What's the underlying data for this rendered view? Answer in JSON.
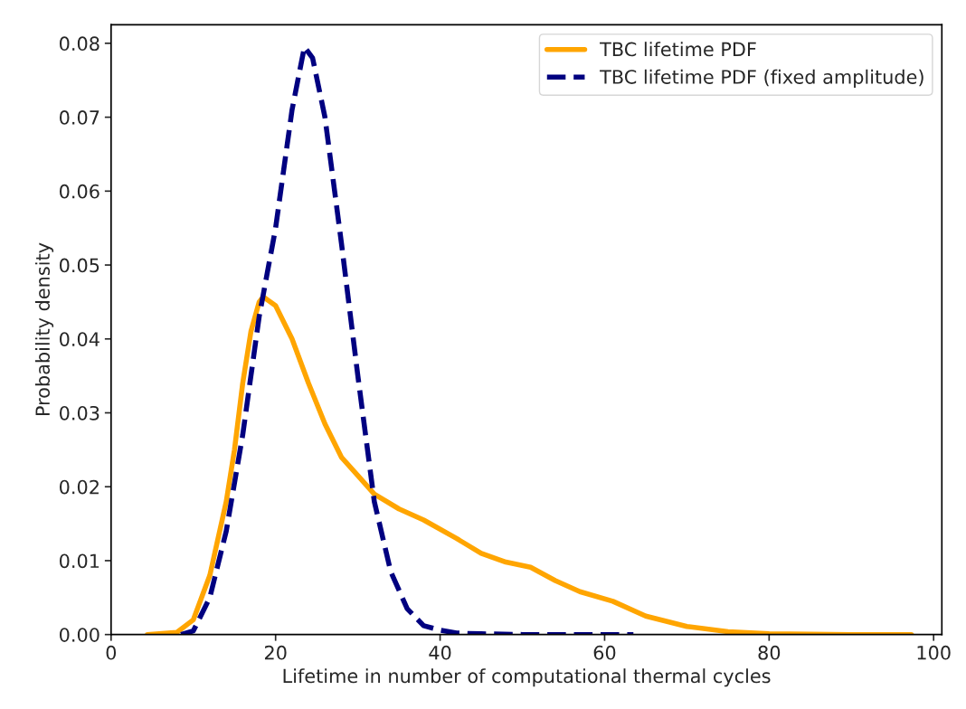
{
  "chart_data": {
    "type": "line",
    "xlabel": "Lifetime in number of computational thermal cycles",
    "ylabel": "Probability density",
    "xlim": [
      0,
      101
    ],
    "xticks": [
      0,
      20,
      40,
      60,
      80,
      100
    ],
    "ylim": [
      0,
      0.0825
    ],
    "yticks": [
      {
        "value": 0,
        "label": "0.00"
      },
      {
        "value": 0.01,
        "label": "0.01"
      },
      {
        "value": 0.02,
        "label": "0.02"
      },
      {
        "value": 0.03,
        "label": "0.03"
      },
      {
        "value": 0.04,
        "label": "0.04"
      },
      {
        "value": 0.05,
        "label": "0.05"
      },
      {
        "value": 0.06,
        "label": "0.06"
      },
      {
        "value": 0.07,
        "label": "0.07"
      },
      {
        "value": 0.08,
        "label": "0.08"
      }
    ],
    "legend": "top right",
    "grid": false,
    "series": [
      {
        "name": "TBC lifetime PDF",
        "color": "#ffa500",
        "line_style": "solid",
        "x": [
          4.4,
          8,
          10,
          12,
          14,
          15,
          16,
          17,
          18,
          18.5,
          20,
          22,
          24,
          26,
          28,
          30,
          32,
          35,
          38,
          42,
          45,
          48,
          51,
          54,
          57,
          61,
          65,
          70,
          75,
          80,
          90,
          97.3
        ],
        "values": [
          0,
          0.0003,
          0.002,
          0.008,
          0.018,
          0.025,
          0.034,
          0.041,
          0.045,
          0.0457,
          0.0445,
          0.04,
          0.034,
          0.0285,
          0.024,
          0.0215,
          0.019,
          0.017,
          0.0155,
          0.013,
          0.011,
          0.0098,
          0.0091,
          0.0073,
          0.0058,
          0.0045,
          0.0025,
          0.0011,
          0.0004,
          0.0001,
          0,
          0
        ]
      },
      {
        "name": "TBC lifetime PDF (fixed amplitude)",
        "color": "#000080",
        "line_style": "dashed",
        "x": [
          8.5,
          10,
          12,
          14,
          16,
          18,
          18.5,
          20,
          22,
          23.5,
          24.5,
          26,
          28,
          30,
          32,
          34,
          36,
          38,
          40,
          42,
          45,
          50,
          63.5
        ],
        "values": [
          0,
          0.0005,
          0.005,
          0.014,
          0.027,
          0.043,
          0.046,
          0.055,
          0.071,
          0.0795,
          0.078,
          0.07,
          0.053,
          0.035,
          0.018,
          0.0085,
          0.0035,
          0.0012,
          0.0006,
          0.0002,
          0.0001,
          0,
          0
        ]
      }
    ]
  }
}
